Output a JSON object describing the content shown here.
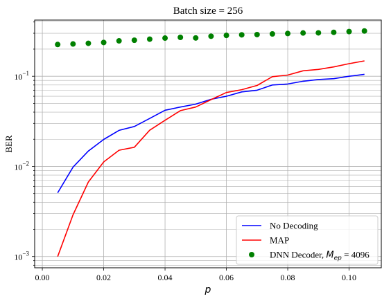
{
  "chart_data": {
    "type": "line",
    "title": "Batch size = 256",
    "xlabel": "p",
    "ylabel": "BER",
    "yscale": "log",
    "xlim": [
      -0.0025,
      0.1105
    ],
    "ylim": [
      0.00075,
      0.42
    ],
    "xticks": [
      0.0,
      0.02,
      0.04,
      0.06,
      0.08,
      0.1
    ],
    "xtick_labels": [
      "0.00",
      "0.02",
      "0.04",
      "0.06",
      "0.08",
      "0.10"
    ],
    "ytick_labels": [
      {
        "base": "10",
        "exp": "−3",
        "value": 0.001
      },
      {
        "base": "10",
        "exp": "−2",
        "value": 0.01
      },
      {
        "base": "10",
        "exp": "−1",
        "value": 0.1
      }
    ],
    "grid": true,
    "legend_position": "lower-right",
    "x": [
      0.005,
      0.01,
      0.015,
      0.02,
      0.025,
      0.03,
      0.035,
      0.04,
      0.045,
      0.05,
      0.055,
      0.06,
      0.065,
      0.07,
      0.075,
      0.08,
      0.085,
      0.09,
      0.095,
      0.1,
      0.105
    ],
    "series": [
      {
        "name": "No Decoding",
        "kind": "line",
        "color": "#0000ff",
        "values": [
          0.0051,
          0.0098,
          0.0148,
          0.0199,
          0.0251,
          0.0277,
          0.034,
          0.042,
          0.0455,
          0.049,
          0.0555,
          0.06,
          0.067,
          0.07,
          0.08,
          0.082,
          0.088,
          0.092,
          0.094,
          0.1,
          0.105
        ]
      },
      {
        "name": "MAP",
        "kind": "line",
        "color": "#ff0000",
        "values": [
          0.001,
          0.0029,
          0.0067,
          0.0112,
          0.0151,
          0.0163,
          0.0252,
          0.0325,
          0.0415,
          0.0455,
          0.055,
          0.066,
          0.071,
          0.079,
          0.099,
          0.103,
          0.115,
          0.119,
          0.127,
          0.138,
          0.148
        ]
      },
      {
        "name_prefix": "DNN Decoder, ",
        "name_math": "M",
        "name_sub": "ep",
        "name_suffix": " = 4096",
        "kind": "scatter",
        "color": "#008000",
        "values": [
          0.225,
          0.228,
          0.232,
          0.237,
          0.247,
          0.251,
          0.258,
          0.265,
          0.27,
          0.266,
          0.278,
          0.284,
          0.288,
          0.29,
          0.295,
          0.298,
          0.302,
          0.303,
          0.307,
          0.313,
          0.318
        ]
      }
    ]
  }
}
